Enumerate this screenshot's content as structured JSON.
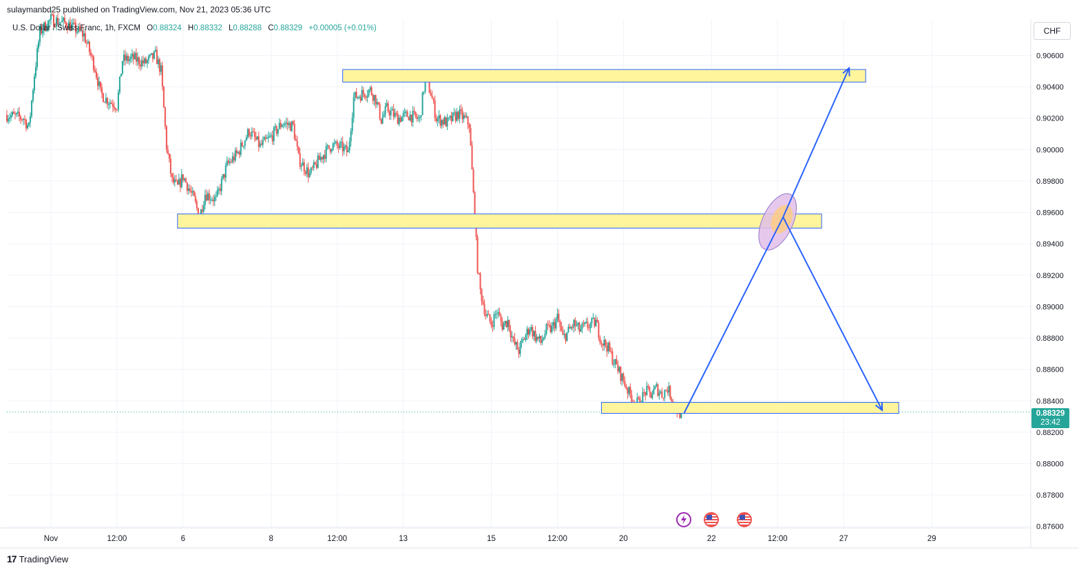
{
  "header": {
    "publisher": "sulaymanbd25 published on TradingView.com, Nov 21, 2023 05:36 UTC"
  },
  "legend": {
    "symbol": "U.S. Dollar / Swiss Franc, 1h, FXCM",
    "open_label": "O",
    "open": "0.88324",
    "high_label": "H",
    "high": "0.88332",
    "low_label": "L",
    "low": "0.88288",
    "close_label": "C",
    "close": "0.88329",
    "change": "+0.00005 (+0.01%)"
  },
  "currency_button": "CHF",
  "last_price": {
    "price": "0.88329",
    "countdown": "23:42",
    "value": 0.88329
  },
  "footer": {
    "brand": "TradingView",
    "logo_glyph": "17"
  },
  "colors": {
    "up": "#26a69a",
    "down": "#ef5350",
    "zone_fill": "#fff59d",
    "zone_border": "#2962ff",
    "arrow": "#2962ff",
    "ellipse_fill": "#e1bee7",
    "ellipse_inner": "#ffcc80",
    "event_lightning": "#9c27b0",
    "event_flag": "#ef5350"
  },
  "chart_data": {
    "type": "candlestick",
    "title": "",
    "xlabel": "",
    "ylabel": "",
    "ylim": [
      0.8759,
      0.9083
    ],
    "y_ticks": [
      "0.90600",
      "0.90400",
      "0.90200",
      "0.90000",
      "0.89800",
      "0.89600",
      "0.89400",
      "0.89200",
      "0.89000",
      "0.88800",
      "0.88600",
      "0.88400",
      "0.88200",
      "0.88000",
      "0.87800",
      "0.87600"
    ],
    "y_tick_values": [
      0.906,
      0.904,
      0.902,
      0.9,
      0.898,
      0.896,
      0.894,
      0.892,
      0.89,
      0.888,
      0.886,
      0.884,
      0.882,
      0.88,
      0.878,
      0.876
    ],
    "x_range": [
      0,
      186
    ],
    "x_ticks": [
      {
        "label": "Nov",
        "t": 8
      },
      {
        "label": "12:00",
        "t": 20
      },
      {
        "label": "6",
        "t": 32
      },
      {
        "label": "8",
        "t": 48
      },
      {
        "label": "12:00",
        "t": 60
      },
      {
        "label": "13",
        "t": 72
      },
      {
        "label": "15",
        "t": 88
      },
      {
        "label": "12:00",
        "t": 100
      },
      {
        "label": "20",
        "t": 112
      },
      {
        "label": "22",
        "t": 128
      },
      {
        "label": "12:00",
        "t": 140
      },
      {
        "label": "27",
        "t": 152
      },
      {
        "label": "29",
        "t": 168
      }
    ],
    "price_path": [
      [
        0,
        0.9022
      ],
      [
        3,
        0.902
      ],
      [
        4,
        0.9014
      ],
      [
        5,
        0.9048
      ],
      [
        6,
        0.9075
      ],
      [
        8,
        0.9083
      ],
      [
        11,
        0.908
      ],
      [
        14,
        0.9073
      ],
      [
        16,
        0.9052
      ],
      [
        17,
        0.9036
      ],
      [
        18,
        0.9032
      ],
      [
        20,
        0.9028
      ],
      [
        21,
        0.9057
      ],
      [
        23,
        0.9058
      ],
      [
        25,
        0.9055
      ],
      [
        27,
        0.906
      ],
      [
        28,
        0.905
      ],
      [
        29,
        0.9002
      ],
      [
        30,
        0.898
      ],
      [
        31,
        0.8976
      ],
      [
        32,
        0.8983
      ],
      [
        34,
        0.8968
      ],
      [
        35,
        0.8957
      ],
      [
        36,
        0.8972
      ],
      [
        38,
        0.8968
      ],
      [
        40,
        0.899
      ],
      [
        42,
        0.8998
      ],
      [
        44,
        0.9012
      ],
      [
        46,
        0.9002
      ],
      [
        48,
        0.9008
      ],
      [
        50,
        0.9017
      ],
      [
        52,
        0.9015
      ],
      [
        53,
        0.8994
      ],
      [
        55,
        0.8984
      ],
      [
        57,
        0.8995
      ],
      [
        59,
        0.9003
      ],
      [
        61,
        0.9001
      ],
      [
        62,
        0.8998
      ],
      [
        63,
        0.9033
      ],
      [
        66,
        0.9038
      ],
      [
        67,
        0.9032
      ],
      [
        68,
        0.9019
      ],
      [
        69,
        0.9026
      ],
      [
        71,
        0.902
      ],
      [
        73,
        0.9022
      ],
      [
        75,
        0.9019
      ],
      [
        76,
        0.9046
      ],
      [
        77,
        0.9036
      ],
      [
        78,
        0.902
      ],
      [
        80,
        0.9017
      ],
      [
        82,
        0.9023
      ],
      [
        83,
        0.902
      ],
      [
        84,
        0.9016
      ],
      [
        85,
        0.8956
      ],
      [
        85.5,
        0.8925
      ],
      [
        86,
        0.891
      ],
      [
        87,
        0.8895
      ],
      [
        88,
        0.8889
      ],
      [
        89,
        0.8897
      ],
      [
        90,
        0.8888
      ],
      [
        91,
        0.8891
      ],
      [
        92,
        0.8877
      ],
      [
        93,
        0.8872
      ],
      [
        94,
        0.888
      ],
      [
        95,
        0.8887
      ],
      [
        96,
        0.8881
      ],
      [
        97,
        0.8877
      ],
      [
        98,
        0.8885
      ],
      [
        99,
        0.8886
      ],
      [
        100,
        0.8893
      ],
      [
        101,
        0.888
      ],
      [
        102,
        0.8884
      ],
      [
        103,
        0.8889
      ],
      [
        104,
        0.8885
      ],
      [
        105,
        0.8887
      ],
      [
        107,
        0.889
      ],
      [
        108,
        0.8878
      ],
      [
        109,
        0.8875
      ],
      [
        110,
        0.8867
      ],
      [
        111,
        0.886
      ],
      [
        112,
        0.8853
      ],
      [
        113,
        0.8845
      ],
      [
        114,
        0.8838
      ],
      [
        115,
        0.8839
      ],
      [
        116,
        0.8846
      ],
      [
        117,
        0.8844
      ],
      [
        118,
        0.8848
      ],
      [
        119,
        0.8844
      ],
      [
        120,
        0.8848
      ],
      [
        121,
        0.884
      ],
      [
        122,
        0.8832
      ],
      [
        123,
        0.8833
      ]
    ],
    "zones": [
      {
        "name": "resistance",
        "from_t": 61,
        "to_t": 156,
        "top": 0.9051,
        "bottom": 0.9043
      },
      {
        "name": "middle",
        "from_t": 31,
        "to_t": 148,
        "top": 0.8959,
        "bottom": 0.895
      },
      {
        "name": "support",
        "from_t": 108,
        "to_t": 162,
        "top": 0.8839,
        "bottom": 0.8832
      }
    ],
    "arrows": [
      {
        "from": [
          123,
          0.8832
        ],
        "to": [
          141,
          0.8957
        ]
      },
      {
        "from": [
          141,
          0.8957
        ],
        "to": [
          153,
          0.9052
        ]
      },
      {
        "from": [
          141,
          0.8957
        ],
        "to": [
          159,
          0.8834
        ]
      }
    ],
    "ellipse_at": [
      140,
      0.8954
    ],
    "events": [
      {
        "icon": "lightning-icon",
        "t": 123
      },
      {
        "icon": "us-flag-icon",
        "t": 128
      },
      {
        "icon": "us-flag-icon",
        "t": 134
      }
    ]
  }
}
